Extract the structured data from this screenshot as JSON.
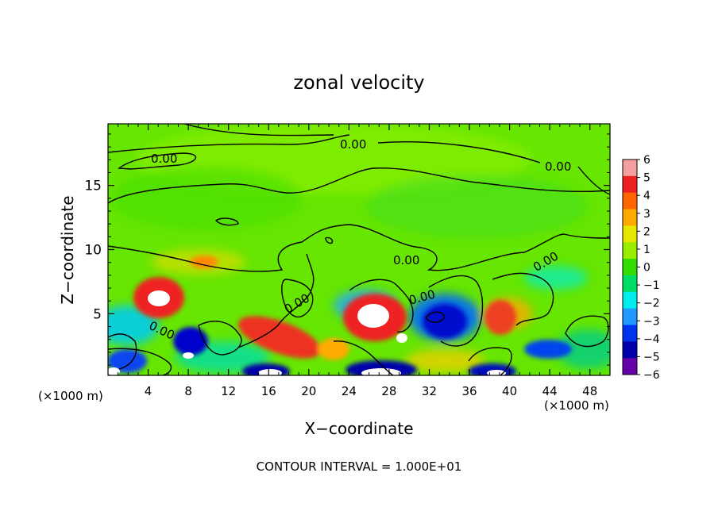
{
  "chart_data": {
    "type": "heatmap",
    "title": "zonal velocity",
    "xlabel": "X−coordinate",
    "ylabel": "Z−coordinate",
    "x_unit": "(×1000 m)",
    "y_unit": "(×1000 m)",
    "x_ticks": [
      "4",
      "8",
      "12",
      "16",
      "20",
      "24",
      "28",
      "32",
      "36",
      "40",
      "44",
      "48"
    ],
    "y_ticks": [
      "5",
      "10",
      "15"
    ],
    "xlim": [
      0,
      50
    ],
    "ylim": [
      0.2,
      19.8
    ],
    "contour_interval_text": "CONTOUR INTERVAL = 1.000E+01",
    "contour_labels": [
      "0.00",
      "0.00",
      "0.00",
      "0.00",
      "0.00",
      "0.00",
      "0.00",
      "0.00"
    ],
    "colorbar": {
      "labels": [
        "6",
        "5",
        "4",
        "3",
        "2",
        "1",
        "0",
        "−1",
        "−2",
        "−3",
        "−4",
        "−5",
        "−6"
      ],
      "colors": [
        "#f5a0a0",
        "#ee2020",
        "#ff6600",
        "#ffaa00",
        "#e6e600",
        "#99ee00",
        "#33dd00",
        "#00dd66",
        "#00eeee",
        "#2299ff",
        "#0033ee",
        "#0000aa",
        "#6600aa"
      ]
    }
  }
}
